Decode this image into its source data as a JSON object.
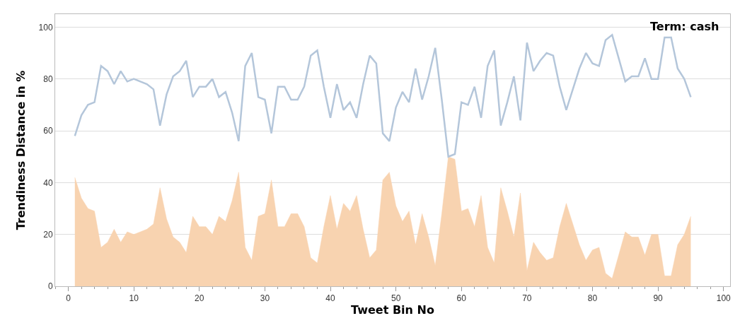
{
  "chart_data": {
    "type": "line",
    "xlabel": "Tweet Bin No",
    "ylabel": "Trendiness Distance in %",
    "annotations": [
      "Term: cash"
    ],
    "x": [
      1,
      2,
      3,
      4,
      5,
      6,
      7,
      8,
      9,
      10,
      11,
      12,
      13,
      14,
      15,
      16,
      17,
      18,
      19,
      20,
      21,
      22,
      23,
      24,
      25,
      26,
      27,
      28,
      29,
      30,
      31,
      32,
      33,
      34,
      35,
      36,
      37,
      38,
      39,
      40,
      41,
      42,
      43,
      44,
      45,
      46,
      47,
      48,
      49,
      50,
      51,
      52,
      53,
      54,
      55,
      56,
      57,
      58,
      59,
      60,
      61,
      62,
      63,
      64,
      65,
      66,
      67,
      68,
      69,
      70,
      71,
      72,
      73,
      74,
      75,
      76,
      77,
      78,
      79,
      80,
      81,
      82,
      83,
      84,
      85,
      86,
      87,
      88,
      89,
      90,
      91,
      92,
      93,
      94,
      95
    ],
    "series": [
      {
        "type": "area",
        "color": "#f8d3b0",
        "values": [
          42,
          34,
          30,
          29,
          15,
          17,
          22,
          17,
          21,
          20,
          21,
          22,
          24,
          38,
          26,
          19,
          17,
          13,
          27,
          23,
          23,
          20,
          27,
          25,
          33,
          44,
          15,
          10,
          27,
          28,
          41,
          23,
          23,
          28,
          28,
          23,
          11,
          9,
          23,
          35,
          22,
          32,
          29,
          35,
          22,
          11,
          14,
          41,
          44,
          31,
          25,
          29,
          16,
          28,
          19,
          8,
          28,
          50,
          49,
          29,
          30,
          23,
          35,
          15,
          9,
          38,
          29,
          19,
          36,
          6,
          17,
          13,
          10,
          11,
          23,
          32,
          24,
          16,
          10,
          14,
          15,
          5,
          3,
          12,
          21,
          19,
          19,
          12,
          20,
          20,
          4,
          4,
          16,
          20,
          27
        ]
      },
      {
        "color": "#b4c6da",
        "values": [
          58,
          66,
          70,
          71,
          85,
          83,
          78,
          83,
          79,
          80,
          79,
          78,
          76,
          62,
          74,
          81,
          83,
          87,
          73,
          77,
          77,
          80,
          73,
          75,
          67,
          56,
          85,
          90,
          73,
          72,
          59,
          77,
          77,
          72,
          72,
          77,
          89,
          91,
          77,
          65,
          78,
          68,
          71,
          65,
          78,
          89,
          86,
          59,
          56,
          69,
          75,
          71,
          84,
          72,
          81,
          92,
          72,
          50,
          51,
          71,
          70,
          77,
          65,
          85,
          91,
          62,
          71,
          81,
          64,
          94,
          83,
          87,
          90,
          89,
          77,
          68,
          76,
          84,
          90,
          86,
          85,
          95,
          97,
          88,
          79,
          81,
          81,
          88,
          80,
          80,
          96,
          96,
          84,
          80,
          73
        ]
      }
    ],
    "xlim": [
      -2,
      101
    ],
    "xticks": [
      0,
      10,
      20,
      30,
      40,
      50,
      60,
      70,
      80,
      90,
      100
    ],
    "ylim": [
      0,
      105
    ],
    "yticks": [
      0,
      20,
      40,
      60,
      80,
      100
    ],
    "grid": "y",
    "marker": "none",
    "line_style": "solid"
  }
}
